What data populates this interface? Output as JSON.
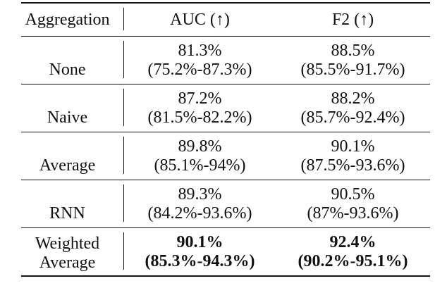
{
  "table": {
    "header": [
      "Aggregation",
      "AUC (↑)",
      "F2 (↑)"
    ],
    "rows": [
      [
        "None",
        "81.3%",
        "(75.2%-87.3%)",
        "88.5%",
        "(85.5%-91.7%)"
      ],
      [
        "Naive",
        "87.2%",
        "(81.5%-82.2%)",
        "88.2%",
        "(85.7%-92.4%)"
      ],
      [
        "Average",
        "89.8%",
        "(85.1%-94%)",
        "90.1%",
        "(87.5%-93.6%)"
      ],
      [
        "RNN",
        "89.3%",
        "(84.2%-93.6%)",
        "90.5%",
        "(87%-93.6%)"
      ],
      [
        "Weighted Average",
        "90.1%",
        "(85.3%-94.3%)",
        "92.4%",
        "(90.2%-95.1%)"
      ]
    ],
    "bold_row": 4
  }
}
